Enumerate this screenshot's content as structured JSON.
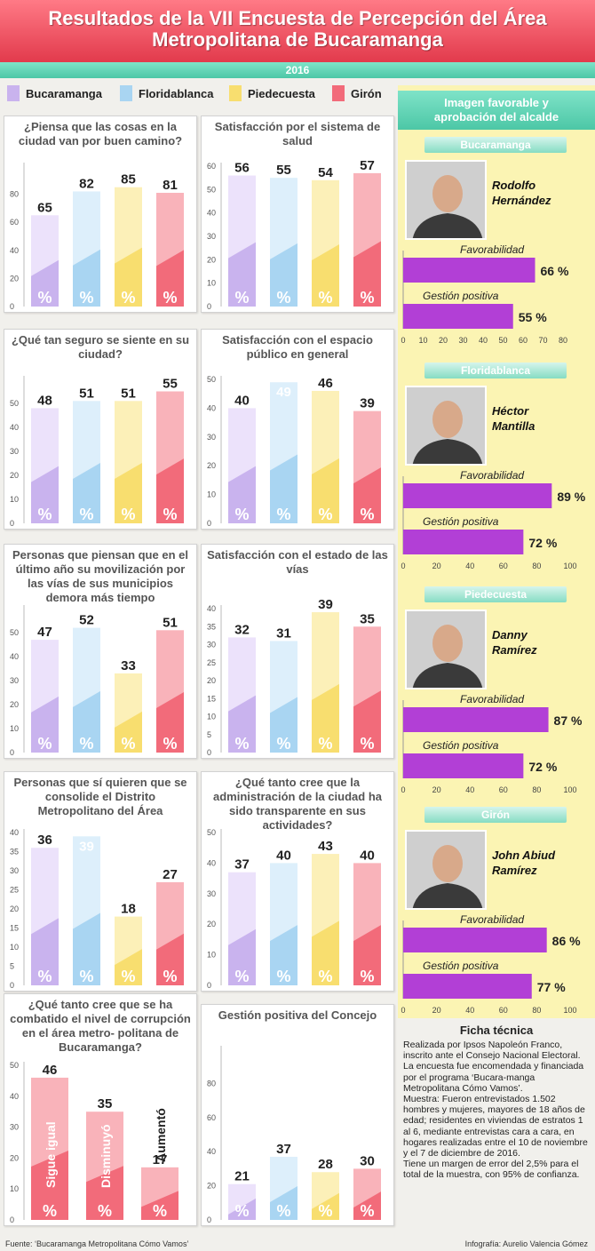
{
  "header": {
    "title_line1": "Resultados de la VII Encuesta de Percepción del Área",
    "title_line2": "Metropolitana de Bucaramanga",
    "year": "2016"
  },
  "legend": [
    {
      "label": "Bucaramanga",
      "color": "#c9b3ee"
    },
    {
      "label": "Floridablanca",
      "color": "#a9d5f2"
    },
    {
      "label": "Piedecuesta",
      "color": "#f8de6f"
    },
    {
      "label": "Girón",
      "color": "#f26b7a"
    }
  ],
  "colors": {
    "bucaramanga": [
      "#c9b3ee",
      "#ece2fb"
    ],
    "floridablanca": [
      "#a9d5f2",
      "#ddeffb"
    ],
    "piedecuesta": [
      "#f8de6f",
      "#fcf0b8"
    ],
    "giron": [
      "#f26b7a",
      "#f9b3ba"
    ],
    "mayor_bar": "#b23fd6",
    "accent_teal": "#4cc7a6",
    "accent_red": "#e23a4c"
  },
  "percent_symbol": "%",
  "chart_data": [
    {
      "type": "bar",
      "title": "¿Piensa que las cosas en la ciudad van por buen camino?",
      "categories": [
        "Bucaramanga",
        "Floridablanca",
        "Piedecuesta",
        "Girón"
      ],
      "values": [
        65,
        82,
        85,
        81
      ],
      "value_labels": [
        "65",
        "82",
        "85",
        "81"
      ],
      "ylim": [
        0,
        100
      ],
      "yticks": [
        0,
        20,
        40,
        60,
        80
      ]
    },
    {
      "type": "bar",
      "title": "Satisfacción por el sistema de salud",
      "categories": [
        "Bucaramanga",
        "Floridablanca",
        "Piedecuesta",
        "Girón"
      ],
      "values": [
        56,
        55,
        54,
        57
      ],
      "value_labels": [
        "56",
        "55",
        "54",
        "57"
      ],
      "ylim": [
        0,
        60
      ],
      "yticks": [
        0,
        10,
        20,
        30,
        40,
        50,
        60
      ]
    },
    {
      "type": "bar",
      "title": "¿Qué tan seguro se siente en su ciudad?",
      "categories": [
        "Bucaramanga",
        "Floridablanca",
        "Piedecuesta",
        "Girón"
      ],
      "values": [
        48,
        51,
        51,
        55
      ],
      "value_labels": [
        "48",
        "51",
        "51",
        "55"
      ],
      "ylim": [
        0,
        60
      ],
      "yticks": [
        0,
        10,
        20,
        30,
        40,
        50
      ]
    },
    {
      "type": "bar",
      "title": "Satisfacción con el espacio público en general",
      "categories": [
        "Bucaramanga",
        "Floridablanca",
        "Piedecuesta",
        "Girón"
      ],
      "values": [
        40,
        49,
        46,
        39
      ],
      "value_labels": [
        "40",
        "49",
        "46",
        "39"
      ],
      "ylim": [
        0,
        50
      ],
      "yticks": [
        0,
        10,
        20,
        30,
        40,
        50
      ]
    },
    {
      "type": "bar",
      "title": "Personas que piensan que en el último año su movilización por las vías de sus municipios demora más tiempo",
      "categories": [
        "Bucaramanga",
        "Floridablanca",
        "Piedecuesta",
        "Girón"
      ],
      "values": [
        47,
        52,
        33,
        51
      ],
      "value_labels": [
        "47",
        "52",
        "33",
        "51"
      ],
      "ylim": [
        0,
        60
      ],
      "yticks": [
        0,
        10,
        20,
        30,
        40,
        50
      ]
    },
    {
      "type": "bar",
      "title": "Satisfacción con el estado de las vías",
      "categories": [
        "Bucaramanga",
        "Floridablanca",
        "Piedecuesta",
        "Girón"
      ],
      "values": [
        32,
        31,
        39,
        35
      ],
      "value_labels": [
        "32",
        "31",
        "39",
        "35"
      ],
      "ylim": [
        0,
        40
      ],
      "yticks": [
        0,
        5,
        10,
        15,
        20,
        25,
        30,
        35,
        40
      ]
    },
    {
      "type": "bar",
      "title": "Personas que sí quieren que se consolide el Distrito Metropolitano del Área",
      "categories": [
        "Bucaramanga",
        "Floridablanca",
        "Piedecuesta",
        "Girón"
      ],
      "values": [
        36,
        39,
        18,
        27
      ],
      "value_labels": [
        "36",
        "39",
        "18",
        "27"
      ],
      "ylim": [
        0,
        40
      ],
      "yticks": [
        0,
        5,
        10,
        15,
        20,
        25,
        30,
        35,
        40
      ]
    },
    {
      "type": "bar",
      "title": "¿Qué tanto cree que la administración de la ciudad ha sido transparente en sus actividades?",
      "categories": [
        "Bucaramanga",
        "Floridablanca",
        "Piedecuesta",
        "Girón"
      ],
      "values": [
        37,
        40,
        43,
        40
      ],
      "value_labels": [
        "37",
        "40",
        "43",
        "40"
      ],
      "ylim": [
        0,
        50
      ],
      "yticks": [
        0,
        10,
        20,
        30,
        40,
        50
      ]
    },
    {
      "type": "bar",
      "title": "¿Qué tanto cree que se ha combatido el nivel de corrupción en el área metro- politana de Bucaramanga?",
      "categories": [
        "Sigue igual",
        "Disminuyó",
        "Aumentó"
      ],
      "values": [
        46,
        35,
        17
      ],
      "value_labels": [
        "46",
        "35",
        "17"
      ],
      "ylim": [
        0,
        50
      ],
      "yticks": [
        0,
        10,
        20,
        30,
        40,
        50
      ]
    },
    {
      "type": "bar",
      "title": "Gestión positiva del Concejo",
      "categories": [
        "Bucaramanga",
        "Floridablanca",
        "Piedecuesta",
        "Girón"
      ],
      "values": [
        21,
        37,
        28,
        30
      ],
      "value_labels": [
        "21",
        "37",
        "28",
        "30"
      ],
      "ylim": [
        0,
        100
      ],
      "yticks": [
        0,
        20,
        40,
        60,
        80
      ]
    }
  ],
  "mayors": {
    "title_line1": "Imagen favorable y",
    "title_line2": "aprobación del alcalde",
    "favorability_label": "Favorabilidad",
    "management_label": "Gestión positiva",
    "items": [
      {
        "municipality": "Bucaramanga",
        "name_line1": "Rodolfo",
        "name_line2": "Hernández",
        "favorability": 66,
        "favorability_label": "66 %",
        "management": 55,
        "management_label": "55 %",
        "axis_max": 80,
        "ticks": [
          0,
          10,
          20,
          30,
          40,
          50,
          60,
          70,
          80
        ]
      },
      {
        "municipality": "Floridablanca",
        "name_line1": "Héctor",
        "name_line2": "Mantilla",
        "favorability": 89,
        "favorability_label": "89 %",
        "management": 72,
        "management_label": "72 %",
        "axis_max": 100,
        "ticks": [
          0,
          20,
          40,
          60,
          80,
          100
        ]
      },
      {
        "municipality": "Piedecuesta",
        "name_line1": "Danny",
        "name_line2": "Ramírez",
        "favorability": 87,
        "favorability_label": "87 %",
        "management": 72,
        "management_label": "72 %",
        "axis_max": 100,
        "ticks": [
          0,
          20,
          40,
          60,
          80,
          100
        ]
      },
      {
        "municipality": "Girón",
        "name_line1": "John Abiud",
        "name_line2": "Ramírez",
        "favorability": 86,
        "favorability_label": "86 %",
        "management": 77,
        "management_label": "77 %",
        "axis_max": 100,
        "ticks": [
          0,
          20,
          40,
          60,
          80,
          100
        ]
      }
    ]
  },
  "ficha": {
    "title": "Ficha técnica",
    "p1": "Realizada por Ipsos Napoleón Franco, inscrito ante el Consejo Nacional Electoral. La encuesta fue encomendada y financiada por el programa ‘Bucara-manga Metropolitana Cómo Vamos’.",
    "p2": "Muestra: Fueron entrevistados 1.502 hombres y mujeres, mayores de 18 años de edad; residentes en viviendas de estratos 1 al 6, mediante entrevistas cara a cara, en hogares realizadas entre el 10 de noviembre y el 7 de diciembre de 2016.",
    "p3": "Tiene un margen de error del 2,5% para el total de la muestra, con 95% de confianza."
  },
  "footer": {
    "source": "Fuente: ‘Bucaramanga Metropolitana Cómo Vamos’",
    "credit": "Infografía: Aurelio Valencia Gómez"
  }
}
